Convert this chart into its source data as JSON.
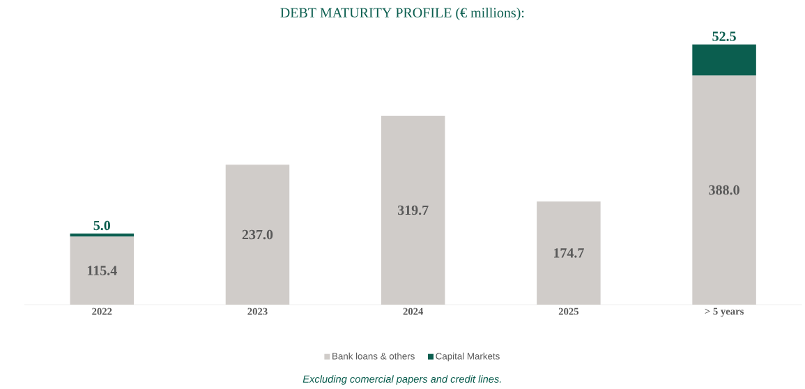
{
  "chart_data": {
    "type": "bar",
    "stacked": true,
    "title": "DEBT MATURITY PROFILE (€ millions):",
    "categories": [
      "2022",
      "2023",
      "2024",
      "2025",
      "> 5 years"
    ],
    "series": [
      {
        "name": "Bank loans & others",
        "color": "#d0ccc9",
        "values": [
          115.4,
          237.0,
          319.7,
          174.7,
          388.0
        ],
        "value_labels": [
          "115.4",
          "237.0",
          "319.7",
          "174.7",
          "388.0"
        ]
      },
      {
        "name": "Capital Markets",
        "color": "#0b5e4f",
        "values": [
          5.0,
          null,
          null,
          null,
          52.5
        ],
        "value_labels": [
          "5.0",
          null,
          null,
          null,
          "52.5"
        ]
      }
    ],
    "legend": "bottom",
    "annotations": [
      "Excluding comercial papers and credit lines."
    ]
  }
}
